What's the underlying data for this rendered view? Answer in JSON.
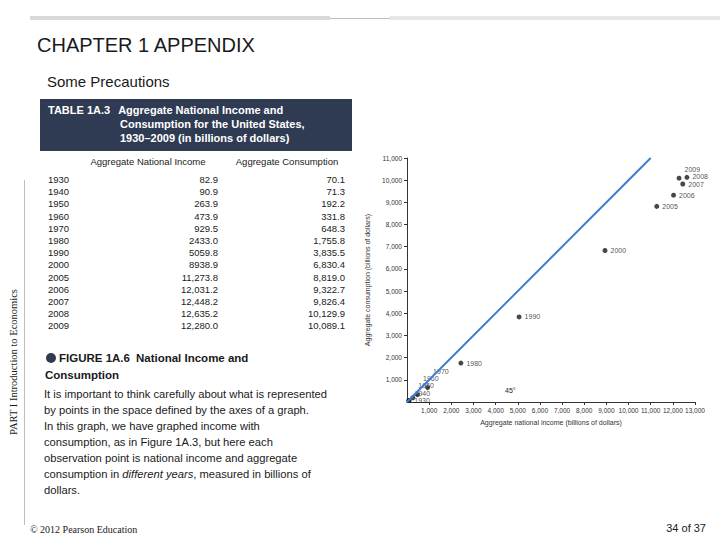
{
  "header": {
    "title": "CHAPTER 1 APPENDIX",
    "subtitle": "Some Precautions"
  },
  "side_label": "PART I Introduction to Economics",
  "table": {
    "label": "TABLE 1A.3",
    "title": [
      "Aggregate National Income and",
      "Consumption for the United States,",
      "1930–2009 (in billions of dollars)"
    ],
    "columns": [
      "Aggregate National Income",
      "Aggregate Consumption"
    ],
    "rows": [
      {
        "year": "1930",
        "values": [
          "82.9",
          "70.1"
        ]
      },
      {
        "year": "1940",
        "values": [
          "90.9",
          "71.3"
        ]
      },
      {
        "year": "1950",
        "values": [
          "263.9",
          "192.2"
        ]
      },
      {
        "year": "1960",
        "values": [
          "473.9",
          "331.8"
        ]
      },
      {
        "year": "1970",
        "values": [
          "929.5",
          "648.3"
        ]
      },
      {
        "year": "1980",
        "values": [
          "2433.0",
          "1,755.8"
        ]
      },
      {
        "year": "1990",
        "values": [
          "5059.8",
          "3,835.5"
        ]
      },
      {
        "year": "2000",
        "values": [
          "8938.9",
          "6,830.4"
        ]
      },
      {
        "year": "2005",
        "values": [
          "11,273.8",
          "8,819.0"
        ]
      },
      {
        "year": "2006",
        "values": [
          "12,031.2",
          "9,322.7"
        ]
      },
      {
        "year": "2007",
        "values": [
          "12,448.2",
          "9,826.4"
        ]
      },
      {
        "year": "2008",
        "values": [
          "12,635.2",
          "10,129.9"
        ]
      },
      {
        "year": "2009",
        "values": [
          "12,280.0",
          "10,089.1"
        ]
      }
    ]
  },
  "figure": {
    "label": "FIGURE 1A.6",
    "title": "National Income and Consumption",
    "paragraphs": [
      [
        {
          "text": "It is important to think carefully about what is represented by points in the space defined by the axes of a graph."
        }
      ],
      [
        {
          "text": "In this graph, we have graphed income with consumption, as in Figure 1A.3, but here each observation point is national income and aggregate consumption in "
        },
        {
          "text": "different years",
          "italic": true
        },
        {
          "text": ", measured in billions of dollars."
        }
      ]
    ]
  },
  "chart_data": {
    "type": "scatter",
    "x_label": "Aggregate national income (billions of dollars)",
    "y_label": "Aggregate consumption (billions of dollars)",
    "xlim": [
      0,
      13000
    ],
    "xticks": [
      {
        "value": 1000,
        "label": "1,000"
      },
      {
        "value": 2000,
        "label": "2,000"
      },
      {
        "value": 3000,
        "label": "3,000"
      },
      {
        "value": 4000,
        "label": "4,000"
      },
      {
        "value": 5000,
        "label": "5,000"
      },
      {
        "value": 6000,
        "label": "6,000"
      },
      {
        "value": 7000,
        "label": "7,000"
      },
      {
        "value": 8000,
        "label": "8,000"
      },
      {
        "value": 9000,
        "label": "9,000"
      },
      {
        "value": 10000,
        "label": "10,000"
      },
      {
        "value": 11000,
        "label": "11,000"
      },
      {
        "value": 12000,
        "label": "12,000"
      },
      {
        "value": 13000,
        "label": "13,000"
      }
    ],
    "ylim": [
      0,
      11000
    ],
    "yticks": [
      {
        "value": 1000,
        "label": "1,000"
      },
      {
        "value": 2000,
        "label": "2,000"
      },
      {
        "value": 3000,
        "label": "3,000"
      },
      {
        "value": 4000,
        "label": "4,000"
      },
      {
        "value": 5000,
        "label": "5,000"
      },
      {
        "value": 6000,
        "label": "6,000"
      },
      {
        "value": 7000,
        "label": "7,000"
      },
      {
        "value": 8000,
        "label": "8,000"
      },
      {
        "value": 9000,
        "label": "9,000"
      },
      {
        "value": 10000,
        "label": "10,000"
      },
      {
        "value": 11000,
        "label": "11,000"
      }
    ],
    "grid": false,
    "series": [
      {
        "name": "Aggregate Consumption",
        "type": "scatter",
        "color": "#1a1a1a",
        "marker": "circle",
        "x": [
          82.9,
          90.9,
          263.9,
          473.9,
          929.5,
          2433.0,
          5059.8,
          8938.9,
          11273.8,
          12031.2,
          12448.2,
          12635.2,
          12280.0
        ],
        "values": [
          70.1,
          71.3,
          192.2,
          331.8,
          648.3,
          1755.8,
          3835.5,
          6830.4,
          8819.0,
          9322.7,
          9826.4,
          10129.9,
          10089.1
        ],
        "labels": [
          "1930",
          "1940",
          "1950",
          "1960",
          "1970",
          "1980",
          "1990",
          "2000",
          "2005",
          "2006",
          "2007",
          "2008",
          "2009"
        ]
      },
      {
        "name": "45° line",
        "type": "line",
        "color": "#3b7dd8",
        "line_style": "solid",
        "x": [
          0,
          11000
        ],
        "values": [
          0,
          11000
        ]
      }
    ],
    "annotations": [
      "45°"
    ]
  },
  "footer": {
    "copyright": "© 2012 Pearson Education",
    "page": "34 of 37"
  }
}
